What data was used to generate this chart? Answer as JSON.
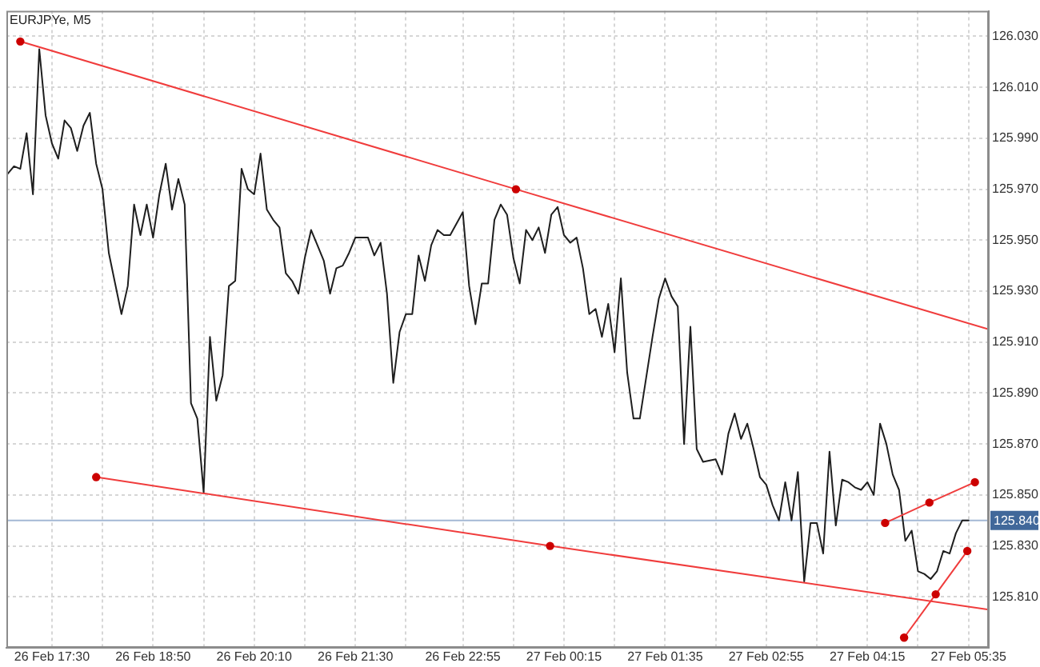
{
  "chart_data": {
    "type": "line",
    "title": "EURJPYe, M5",
    "xlim": [
      "--02-26T16:54",
      "--02-27T05:51"
    ],
    "xticks": [
      {
        "value": "--02-26T17:30",
        "label": "26 Feb 17:30"
      },
      {
        "value": "--02-26T18:10",
        "label": null
      },
      {
        "value": "--02-26T18:50",
        "label": "26 Feb 18:50"
      },
      {
        "value": "--02-26T19:30",
        "label": null
      },
      {
        "value": "--02-26T20:10",
        "label": "26 Feb 20:10"
      },
      {
        "value": "--02-26T20:50",
        "label": null
      },
      {
        "value": "--02-26T21:30",
        "label": "26 Feb 21:30"
      },
      {
        "value": "--02-26T22:10",
        "label": null
      },
      {
        "value": "--02-26T22:55",
        "label": "26 Feb 22:55"
      },
      {
        "value": "--02-26T23:35",
        "label": null
      },
      {
        "value": "--02-27T00:15",
        "label": "27 Feb 00:15"
      },
      {
        "value": "--02-27T00:55",
        "label": null
      },
      {
        "value": "--02-27T01:35",
        "label": "27 Feb 01:35"
      },
      {
        "value": "--02-27T02:15",
        "label": null
      },
      {
        "value": "--02-27T02:55",
        "label": "27 Feb 02:55"
      },
      {
        "value": "--02-27T03:35",
        "label": null
      },
      {
        "value": "--02-27T04:15",
        "label": "27 Feb 04:15"
      },
      {
        "value": "--02-27T04:55",
        "label": null
      },
      {
        "value": "--02-27T05:35",
        "label": "27 Feb 05:35"
      }
    ],
    "ylim": [
      125.79,
      126.04
    ],
    "yticks": [
      {
        "value": 125.81,
        "label": "125.810"
      },
      {
        "value": 125.83,
        "label": "125.830"
      },
      {
        "value": 125.85,
        "label": "125.850"
      },
      {
        "value": 125.87,
        "label": "125.870"
      },
      {
        "value": 125.89,
        "label": "125.890"
      },
      {
        "value": 125.91,
        "label": "125.910"
      },
      {
        "value": 125.93,
        "label": "125.930"
      },
      {
        "value": 125.95,
        "label": "125.950"
      },
      {
        "value": 125.97,
        "label": "125.970"
      },
      {
        "value": 125.99,
        "label": "125.990"
      },
      {
        "value": 126.01,
        "label": "126.010"
      },
      {
        "value": 126.03,
        "label": "126.030"
      }
    ],
    "grid": true,
    "marker": "none",
    "ref_lines": [
      {
        "axis": "y",
        "value": 125.84,
        "label": "125.840",
        "color": "#a3b8d4"
      }
    ],
    "series": [
      {
        "color": "#1e1e1e",
        "x": [
          "--02-26T16:55",
          "--02-26T17:00",
          "--02-26T17:05",
          "--02-26T17:10",
          "--02-26T17:15",
          "--02-26T17:20",
          "--02-26T17:25",
          "--02-26T17:30",
          "--02-26T17:35",
          "--02-26T17:40",
          "--02-26T17:45",
          "--02-26T17:50",
          "--02-26T17:55",
          "--02-26T18:00",
          "--02-26T18:05",
          "--02-26T18:10",
          "--02-26T18:15",
          "--02-26T18:20",
          "--02-26T18:25",
          "--02-26T18:30",
          "--02-26T18:35",
          "--02-26T18:40",
          "--02-26T18:45",
          "--02-26T18:50",
          "--02-26T18:55",
          "--02-26T19:00",
          "--02-26T19:05",
          "--02-26T19:10",
          "--02-26T19:15",
          "--02-26T19:20",
          "--02-26T19:25",
          "--02-26T19:30",
          "--02-26T19:35",
          "--02-26T19:40",
          "--02-26T19:45",
          "--02-26T19:50",
          "--02-26T19:55",
          "--02-26T20:00",
          "--02-26T20:05",
          "--02-26T20:10",
          "--02-26T20:15",
          "--02-26T20:20",
          "--02-26T20:25",
          "--02-26T20:30",
          "--02-26T20:35",
          "--02-26T20:40",
          "--02-26T20:45",
          "--02-26T20:50",
          "--02-26T20:55",
          "--02-26T21:00",
          "--02-26T21:05",
          "--02-26T21:10",
          "--02-26T21:15",
          "--02-26T21:20",
          "--02-26T21:25",
          "--02-26T21:30",
          "--02-26T21:40",
          "--02-26T21:45",
          "--02-26T21:50",
          "--02-26T21:55",
          "--02-26T22:00",
          "--02-26T22:05",
          "--02-26T22:10",
          "--02-26T22:15",
          "--02-26T22:20",
          "--02-26T22:25",
          "--02-26T22:30",
          "--02-26T22:35",
          "--02-26T22:40",
          "--02-26T22:45",
          "--02-26T22:55",
          "--02-26T23:00",
          "--02-26T23:05",
          "--02-26T23:10",
          "--02-26T23:15",
          "--02-26T23:20",
          "--02-26T23:25",
          "--02-26T23:30",
          "--02-26T23:35",
          "--02-26T23:40",
          "--02-26T23:45",
          "--02-26T23:50",
          "--02-26T23:55",
          "--02-27T00:00",
          "--02-27T00:05",
          "--02-27T00:10",
          "--02-27T00:15",
          "--02-27T00:20",
          "--02-27T00:25",
          "--02-27T00:30",
          "--02-27T00:35",
          "--02-27T00:40",
          "--02-27T00:45",
          "--02-27T00:50",
          "--02-27T00:55",
          "--02-27T01:00",
          "--02-27T01:05",
          "--02-27T01:10",
          "--02-27T01:15",
          "--02-27T01:20",
          "--02-27T01:25",
          "--02-27T01:30",
          "--02-27T01:35",
          "--02-27T01:40",
          "--02-27T01:45",
          "--02-27T01:50",
          "--02-27T01:55",
          "--02-27T02:00",
          "--02-27T02:05",
          "--02-27T02:15",
          "--02-27T02:20",
          "--02-27T02:25",
          "--02-27T02:30",
          "--02-27T02:35",
          "--02-27T02:40",
          "--02-27T02:45",
          "--02-27T02:50",
          "--02-27T02:55",
          "--02-27T03:00",
          "--02-27T03:05",
          "--02-27T03:10",
          "--02-27T03:15",
          "--02-27T03:20",
          "--02-27T03:25",
          "--02-27T03:30",
          "--02-27T03:35",
          "--02-27T03:40",
          "--02-27T03:45",
          "--02-27T03:50",
          "--02-27T03:55",
          "--02-27T04:00",
          "--02-27T04:05",
          "--02-27T04:10",
          "--02-27T04:15",
          "--02-27T04:20",
          "--02-27T04:25",
          "--02-27T04:30",
          "--02-27T04:35",
          "--02-27T04:40",
          "--02-27T04:45",
          "--02-27T04:50",
          "--02-27T04:55",
          "--02-27T05:00",
          "--02-27T05:05",
          "--02-27T05:10",
          "--02-27T05:15",
          "--02-27T05:20",
          "--02-27T05:25",
          "--02-27T05:30",
          "--02-27T05:35"
        ],
        "values": [
          125.976,
          125.979,
          125.978,
          125.992,
          125.968,
          126.025,
          125.999,
          125.988,
          125.982,
          125.997,
          125.994,
          125.985,
          125.995,
          126.0,
          125.98,
          125.97,
          125.945,
          125.933,
          125.921,
          125.932,
          125.964,
          125.952,
          125.964,
          125.951,
          125.968,
          125.98,
          125.962,
          125.974,
          125.964,
          125.886,
          125.88,
          125.851,
          125.912,
          125.887,
          125.897,
          125.932,
          125.934,
          125.978,
          125.97,
          125.968,
          125.984,
          125.962,
          125.958,
          125.955,
          125.937,
          125.934,
          125.929,
          125.943,
          125.954,
          125.948,
          125.942,
          125.929,
          125.939,
          125.94,
          125.945,
          125.951,
          125.951,
          125.944,
          125.949,
          125.929,
          125.894,
          125.914,
          125.921,
          125.921,
          125.944,
          125.934,
          125.948,
          125.954,
          125.952,
          125.952,
          125.961,
          125.932,
          125.917,
          125.933,
          125.933,
          125.958,
          125.964,
          125.96,
          125.943,
          125.933,
          125.954,
          125.95,
          125.955,
          125.945,
          125.96,
          125.963,
          125.952,
          125.949,
          125.951,
          125.939,
          125.921,
          125.923,
          125.912,
          125.925,
          125.906,
          125.935,
          125.898,
          125.88,
          125.88,
          125.896,
          125.912,
          125.927,
          125.935,
          125.928,
          125.924,
          125.87,
          125.916,
          125.868,
          125.863,
          125.864,
          125.858,
          125.874,
          125.882,
          125.872,
          125.878,
          125.868,
          125.857,
          125.854,
          125.846,
          125.84,
          125.855,
          125.84,
          125.859,
          125.816,
          125.839,
          125.839,
          125.827,
          125.867,
          125.838,
          125.856,
          125.855,
          125.853,
          125.852,
          125.855,
          125.85,
          125.878,
          125.87,
          125.858,
          125.852,
          125.832,
          125.836,
          125.82,
          125.819,
          125.817,
          125.82,
          125.828,
          125.827,
          125.835,
          125.84,
          125.84
        ]
      },
      {
        "type": "line",
        "color": "#f03c3c",
        "x": [
          "--02-26T17:05",
          "--02-26T23:37",
          "--02-27T05:51"
        ],
        "values": [
          126.028,
          125.97,
          125.915
        ]
      },
      {
        "type": "line",
        "color": "#f03c3c",
        "x": [
          "--02-26T18:05",
          "--02-27T00:04",
          "--02-27T05:51"
        ],
        "values": [
          125.857,
          125.83,
          125.805
        ]
      },
      {
        "type": "line",
        "color": "#f03c3c",
        "x": [
          "--02-27T04:29",
          "--02-27T05:04",
          "--02-27T05:40"
        ],
        "values": [
          125.839,
          125.847,
          125.855
        ]
      },
      {
        "type": "line",
        "color": "#f03c3c",
        "x": [
          "--02-27T04:44",
          "--02-27T05:09",
          "--02-27T05:34"
        ],
        "values": [
          125.794,
          125.811,
          125.828
        ]
      },
      {
        "type": "scatter",
        "color": "#cc0000",
        "marker": "circle",
        "x": [
          "--02-26T17:05",
          "--02-26T23:37",
          "--02-26T18:05",
          "--02-27T00:04",
          "--02-27T04:29",
          "--02-27T05:04",
          "--02-27T05:40",
          "--02-27T04:44",
          "--02-27T05:09",
          "--02-27T05:34"
        ],
        "values": [
          126.028,
          125.97,
          125.857,
          125.83,
          125.839,
          125.847,
          125.855,
          125.794,
          125.811,
          125.828
        ]
      }
    ]
  }
}
